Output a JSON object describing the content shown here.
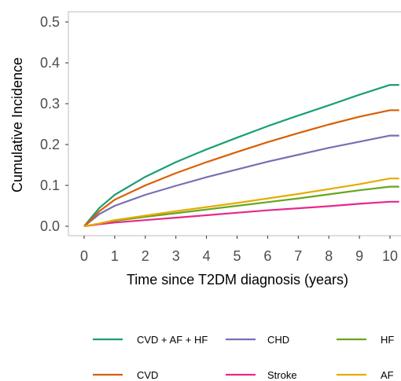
{
  "chart_data": {
    "type": "line",
    "xlabel": "Time since T2DM diagnosis (years)",
    "ylabel": "Cumulative Incidence",
    "xlim": [
      0,
      10
    ],
    "ylim": [
      0,
      0.5
    ],
    "x_ticks": [
      "0",
      "1",
      "2",
      "3",
      "4",
      "5",
      "6",
      "7",
      "8",
      "9",
      "10"
    ],
    "y_ticks": [
      "0.0",
      "0.1",
      "0.2",
      "0.3",
      "0.4",
      "0.5"
    ],
    "x_tick_values": [
      0,
      1,
      2,
      3,
      4,
      5,
      6,
      7,
      8,
      9,
      10
    ],
    "y_tick_values": [
      0,
      0.1,
      0.2,
      0.3,
      0.4,
      0.5
    ],
    "grid": false,
    "legend_position": "bottom",
    "x": [
      0,
      0.5,
      1,
      2,
      3,
      4,
      5,
      6,
      7,
      8,
      9,
      10,
      10.3
    ],
    "series": [
      {
        "name": "CVD + AF + HF",
        "color": "#1b9e77",
        "values": [
          0,
          0.045,
          0.077,
          0.121,
          0.157,
          0.188,
          0.217,
          0.245,
          0.271,
          0.296,
          0.322,
          0.346,
          0.346
        ]
      },
      {
        "name": "CHD",
        "color": "#7570b3",
        "values": [
          0,
          0.03,
          0.05,
          0.077,
          0.099,
          0.12,
          0.139,
          0.158,
          0.175,
          0.192,
          0.207,
          0.222,
          0.222
        ]
      },
      {
        "name": "HF",
        "color": "#66a61e",
        "values": [
          0,
          0.006,
          0.013,
          0.023,
          0.032,
          0.041,
          0.05,
          0.059,
          0.068,
          0.078,
          0.088,
          0.097,
          0.097
        ]
      },
      {
        "name": "CVD",
        "color": "#d95f02",
        "values": [
          0,
          0.037,
          0.065,
          0.1,
          0.13,
          0.157,
          0.182,
          0.206,
          0.228,
          0.249,
          0.268,
          0.284,
          0.284
        ]
      },
      {
        "name": "Stroke",
        "color": "#e7298a",
        "values": [
          0,
          0.005,
          0.009,
          0.015,
          0.021,
          0.027,
          0.033,
          0.039,
          0.044,
          0.049,
          0.055,
          0.06,
          0.06
        ]
      },
      {
        "name": "AF",
        "color": "#e6ab02",
        "values": [
          0,
          0.007,
          0.015,
          0.026,
          0.037,
          0.047,
          0.057,
          0.068,
          0.079,
          0.091,
          0.103,
          0.117,
          0.117
        ]
      }
    ]
  }
}
